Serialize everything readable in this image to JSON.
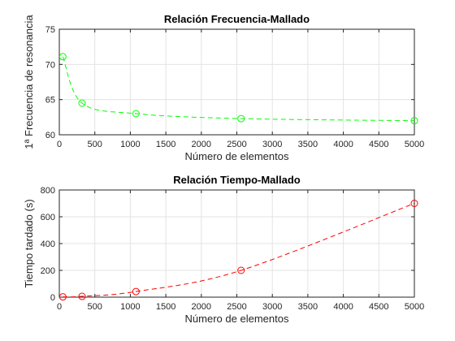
{
  "chart_data": [
    {
      "type": "line",
      "title": "Relación Frecuencia-Mallado",
      "xlabel": "Número de elementos",
      "ylabel": "1ª Frecuencia de resonancia",
      "xlim": [
        0,
        5000
      ],
      "ylim": [
        60,
        75
      ],
      "xticks": [
        0,
        500,
        1000,
        1500,
        2000,
        2500,
        3000,
        3500,
        4000,
        4500,
        5000
      ],
      "yticks": [
        60,
        65,
        70,
        75
      ],
      "grid": true,
      "legend": "none",
      "color": "#00ff00",
      "line_style": "dashed",
      "marker": "circle",
      "interpolation": "spline",
      "series": [
        {
          "x": [
            50,
            320,
            1080,
            2560,
            5000
          ],
          "y": [
            71.1,
            64.5,
            63.0,
            62.3,
            62.0
          ]
        }
      ]
    },
    {
      "type": "line",
      "title": "Relación Tiempo-Mallado",
      "xlabel": "Número de elementos",
      "ylabel": "Tiempo tardado (s)",
      "xlim": [
        0,
        5000
      ],
      "ylim": [
        0,
        800
      ],
      "xticks": [
        0,
        500,
        1000,
        1500,
        2000,
        2500,
        3000,
        3500,
        4000,
        4500,
        5000
      ],
      "yticks": [
        0,
        200,
        400,
        600,
        800
      ],
      "grid": true,
      "legend": "none",
      "color": "#ff0000",
      "line_style": "dashed",
      "marker": "circle",
      "interpolation": "spline",
      "series": [
        {
          "x": [
            50,
            320,
            1080,
            2560,
            5000
          ],
          "y": [
            2,
            6,
            42,
            200,
            700
          ]
        }
      ]
    }
  ]
}
